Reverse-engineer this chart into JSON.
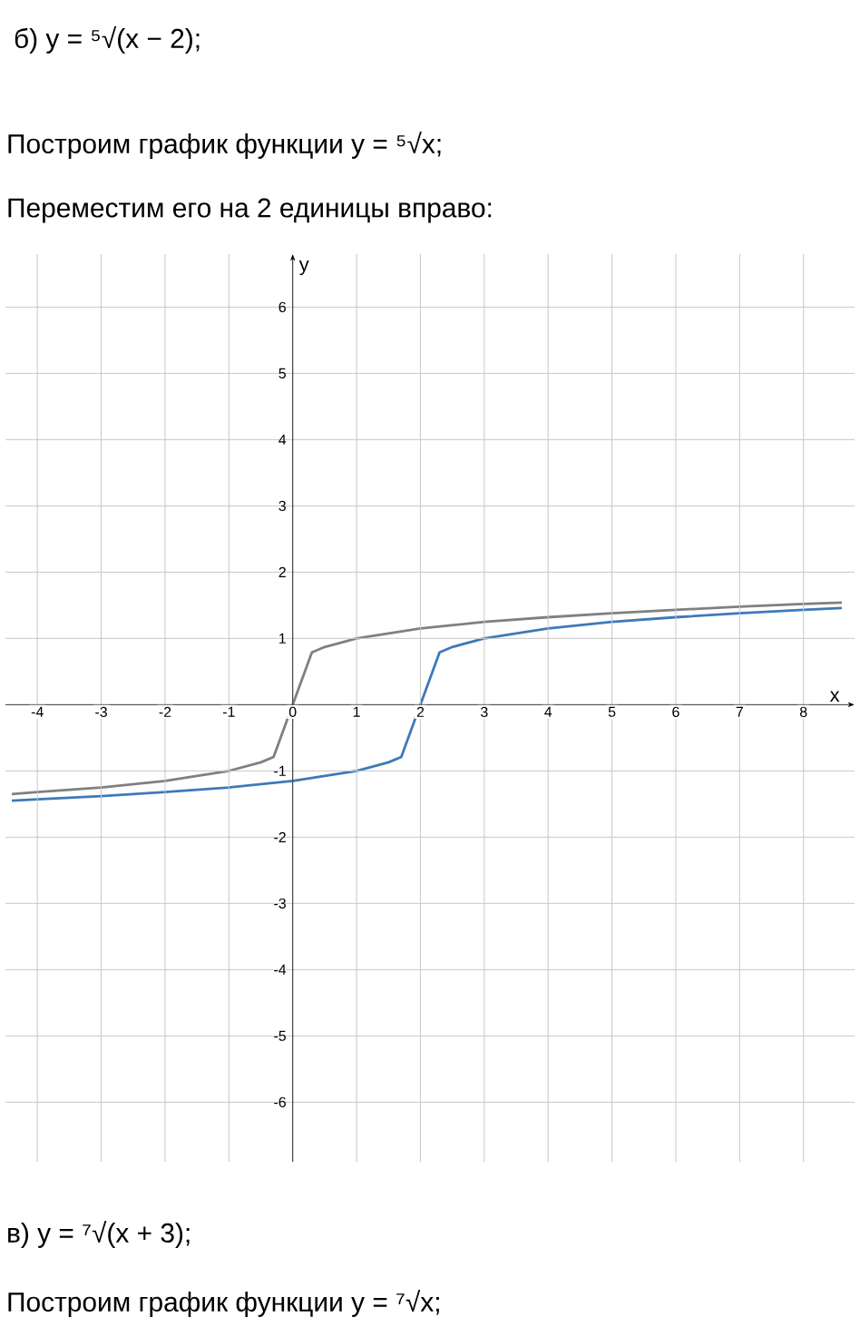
{
  "chart_data": {
    "type": "line",
    "title": "б) y = ⁵√(x − 2);",
    "subtitle": "Построим график функции y = ⁵√x;",
    "annotations": [
      "Переместим его на 2 единицы вправо:",
      "в) y = ⁷√(x + 3);",
      "Построим график функции y = ⁷√x;"
    ],
    "xlabel": "x",
    "ylabel": "y",
    "xlim": [
      -4.5,
      8.8
    ],
    "ylim": [
      -6.9,
      6.8
    ],
    "xticks": [
      -4,
      -3,
      -2,
      -1,
      0,
      1,
      2,
      3,
      4,
      5,
      6,
      7,
      8
    ],
    "yticks": [
      -6,
      -5,
      -4,
      -3,
      -2,
      -1,
      1,
      2,
      3,
      4,
      5,
      6
    ],
    "grid": true,
    "marker": "none",
    "line_style": "solid",
    "series": [
      {
        "color": "#808080",
        "x": [
          -4.4,
          -4,
          -3,
          -2,
          -1,
          -0.5,
          -0.3,
          0,
          0.3,
          0.5,
          1,
          2,
          3,
          4,
          5,
          6,
          7,
          8,
          8.6
        ],
        "values": [
          -1.35,
          -1.32,
          -1.25,
          -1.15,
          -1,
          -0.87,
          -0.79,
          0,
          0.79,
          0.87,
          1,
          1.15,
          1.25,
          1.32,
          1.38,
          1.43,
          1.48,
          1.52,
          1.54
        ]
      },
      {
        "color": "#3d7ab8",
        "x": [
          -4.4,
          -4,
          -3,
          -2,
          -1,
          0,
          1,
          1.5,
          1.7,
          2,
          2.3,
          2.5,
          3,
          4,
          5,
          6,
          7,
          8,
          8.6
        ],
        "values": [
          -1.45,
          -1.43,
          -1.38,
          -1.32,
          -1.25,
          -1.15,
          -1,
          -0.87,
          -0.79,
          0,
          0.79,
          0.87,
          1,
          1.15,
          1.25,
          1.32,
          1.38,
          1.43,
          1.46
        ]
      }
    ]
  }
}
